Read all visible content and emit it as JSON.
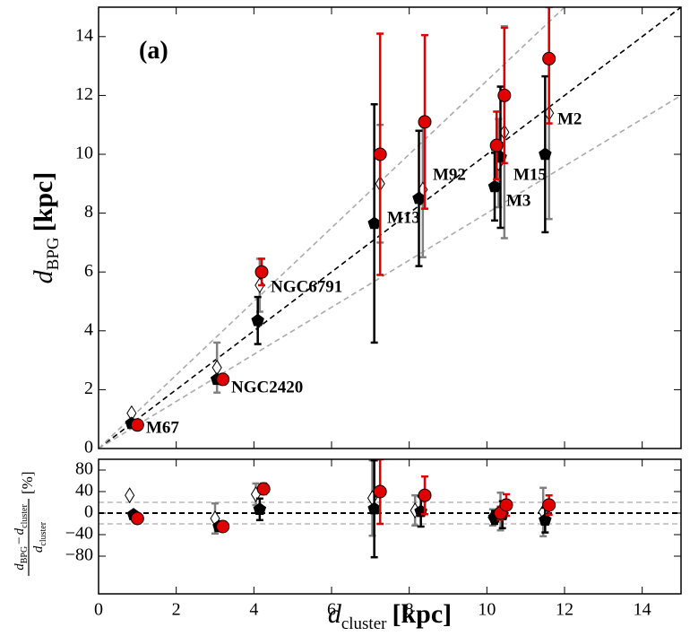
{
  "chart_data": [
    {
      "type": "scatter",
      "panel_label": "(a)",
      "ylabel": {
        "var": "d",
        "sub": "BPG",
        "unit": "[kpc]"
      },
      "xlim": [
        0,
        15
      ],
      "ylim": [
        0,
        15
      ],
      "yticks": [
        0,
        2,
        4,
        6,
        8,
        10,
        12,
        14
      ],
      "reference_lines": [
        {
          "slope": 1,
          "color": "#000000"
        },
        {
          "slope": 1.25,
          "color": "#aaaaaa"
        },
        {
          "slope": 0.8,
          "color": "#aaaaaa"
        }
      ],
      "series": [
        {
          "marker": "diamond",
          "color": "#ffffff",
          "errorbar_color": "#808080",
          "x": [
            0.85,
            3.05,
            4.15,
            7.25,
            8.35,
            10.3,
            10.45,
            11.6
          ],
          "values": [
            1.2,
            2.75,
            5.55,
            9.0,
            8.8,
            9.7,
            10.75,
            11.4
          ],
          "errors": [
            0,
            0.85,
            0.9,
            2.0,
            2.3,
            1.5,
            3.6,
            3.6
          ]
        },
        {
          "marker": "pentagon",
          "color": "#000000",
          "errorbar_color": "#000000",
          "x": [
            0.85,
            3.05,
            4.1,
            7.1,
            8.25,
            10.2,
            10.35,
            11.5
          ],
          "values": [
            0.85,
            2.35,
            4.35,
            7.65,
            8.5,
            8.9,
            9.9,
            10.0
          ],
          "errors": [
            0,
            0,
            0.8,
            4.05,
            2.3,
            1.15,
            2.4,
            2.65
          ]
        },
        {
          "marker": "circle",
          "color": "#e00000",
          "errorbar_color": "#e00000",
          "x": [
            1.0,
            3.2,
            4.2,
            7.25,
            8.4,
            10.25,
            10.45,
            11.6
          ],
          "values": [
            0.8,
            2.35,
            6.0,
            10.0,
            11.1,
            10.3,
            12.0,
            13.25
          ],
          "errors": [
            0,
            0,
            0.45,
            4.1,
            2.95,
            1.15,
            2.3,
            2.2
          ]
        }
      ],
      "annotations": [
        "M67",
        "NGC2420",
        "NGC6791",
        "M13",
        "M92",
        "M3",
        "M15",
        "M2"
      ]
    },
    {
      "type": "scatter",
      "ylabel": {
        "var": "d",
        "sub1": "BPG",
        "minus": "−",
        "sub2": "cluster",
        "unit": "[%]"
      },
      "xlabel": {
        "var": "d",
        "sub": "cluster",
        "unit": "[kpc]"
      },
      "xlim": [
        0,
        15
      ],
      "ylim": [
        -150,
        100
      ],
      "xticks": [
        0,
        2,
        4,
        6,
        8,
        10,
        12,
        14
      ],
      "yticks": [
        {
          "value": -80,
          "label": "−80"
        },
        {
          "value": -40,
          "label": "−40"
        },
        0,
        40,
        80
      ],
      "reference_lines": [
        {
          "y": 0,
          "color": "#000000"
        },
        {
          "y": 20,
          "color": "#aaaaaa"
        },
        {
          "y": -20,
          "color": "#aaaaaa"
        }
      ],
      "series": [
        {
          "marker": "diamond",
          "color": "#ffffff",
          "errorbar_color": "#808080",
          "x": [
            0.8,
            3.0,
            4.05,
            7.05,
            8.15,
            10.15,
            10.35,
            11.45
          ],
          "values": [
            33,
            -10,
            35,
            28,
            5,
            -8,
            3,
            2
          ],
          "errors": [
            0,
            28,
            20,
            70,
            28,
            15,
            35,
            45
          ]
        },
        {
          "marker": "pentagon",
          "color": "#000000",
          "errorbar_color": "#000000",
          "x": [
            0.9,
            3.1,
            4.15,
            7.1,
            8.3,
            10.2,
            10.4,
            11.5
          ],
          "values": [
            -3,
            -25,
            7,
            8,
            3,
            -8,
            -3,
            -13
          ],
          "errors": [
            0,
            0,
            20,
            90,
            28,
            12,
            25,
            23
          ]
        },
        {
          "marker": "circle",
          "color": "#e00000",
          "errorbar_color": "#e00000",
          "x": [
            1.0,
            3.2,
            4.25,
            7.25,
            8.4,
            10.35,
            10.5,
            11.6
          ],
          "values": [
            -10,
            -25,
            45,
            40,
            33,
            0,
            15,
            15
          ],
          "errors": [
            0,
            0,
            10,
            60,
            35,
            12,
            20,
            18
          ]
        }
      ]
    }
  ]
}
